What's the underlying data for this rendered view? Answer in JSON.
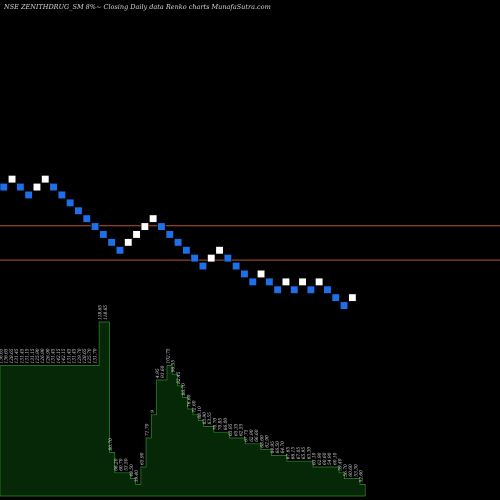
{
  "chart_data": {
    "type": "renko",
    "title": "NSE ZENITHDRUG_SM 8%~   Closing Daily data  Renko  charts MunafaSutra.com",
    "colors": {
      "background": "#000000",
      "up_brick": "#ffffff",
      "down_brick": "#1f6fe8",
      "reference_line": "#b5552f",
      "volume_fill": "#062806",
      "volume_stroke": "#2f8a2f",
      "volume_label": "#d8d8d8"
    },
    "bricks": [
      {
        "dir": "down",
        "level": 26
      },
      {
        "dir": "up",
        "level": 28
      },
      {
        "dir": "down",
        "level": 26
      },
      {
        "dir": "down",
        "level": 24
      },
      {
        "dir": "up",
        "level": 26
      },
      {
        "dir": "up",
        "level": 28
      },
      {
        "dir": "down",
        "level": 26
      },
      {
        "dir": "down",
        "level": 24
      },
      {
        "dir": "down",
        "level": 22
      },
      {
        "dir": "down",
        "level": 20
      },
      {
        "dir": "down",
        "level": 18
      },
      {
        "dir": "down",
        "level": 16
      },
      {
        "dir": "down",
        "level": 14
      },
      {
        "dir": "down",
        "level": 12
      },
      {
        "dir": "down",
        "level": 10
      },
      {
        "dir": "up",
        "level": 12
      },
      {
        "dir": "up",
        "level": 14
      },
      {
        "dir": "up",
        "level": 16
      },
      {
        "dir": "up",
        "level": 18
      },
      {
        "dir": "down",
        "level": 16
      },
      {
        "dir": "down",
        "level": 14
      },
      {
        "dir": "down",
        "level": 12
      },
      {
        "dir": "down",
        "level": 10
      },
      {
        "dir": "down",
        "level": 8
      },
      {
        "dir": "down",
        "level": 6
      },
      {
        "dir": "up",
        "level": 8
      },
      {
        "dir": "up",
        "level": 10
      },
      {
        "dir": "down",
        "level": 8
      },
      {
        "dir": "down",
        "level": 6
      },
      {
        "dir": "down",
        "level": 4
      },
      {
        "dir": "down",
        "level": 2
      },
      {
        "dir": "up",
        "level": 4
      },
      {
        "dir": "down",
        "level": 2
      },
      {
        "dir": "down",
        "level": 0
      },
      {
        "dir": "up",
        "level": 2
      },
      {
        "dir": "down",
        "level": 0
      },
      {
        "dir": "up",
        "level": 2
      },
      {
        "dir": "down",
        "level": 0
      },
      {
        "dir": "up",
        "level": 2
      },
      {
        "dir": "down",
        "level": 0
      },
      {
        "dir": "down",
        "level": -2
      },
      {
        "dir": "down",
        "level": -4
      },
      {
        "dir": "up",
        "level": -2
      }
    ],
    "reference_lines": [
      {
        "level": 16.2
      },
      {
        "level": 7.5
      }
    ],
    "volume": [
      {
        "height": 0.45,
        "label": "136.65"
      },
      {
        "height": 0.45,
        "label": "136.65"
      },
      {
        "height": 0.45,
        "label": "128.65"
      },
      {
        "height": 0.45,
        "label": "131.45"
      },
      {
        "height": 0.45,
        "label": "131.45"
      },
      {
        "height": 0.45,
        "label": "131.15"
      },
      {
        "height": 0.45,
        "label": "131.15"
      },
      {
        "height": 0.45,
        "label": "125.90"
      },
      {
        "height": 0.45,
        "label": "126.90"
      },
      {
        "height": 0.45,
        "label": "126.90"
      },
      {
        "height": 0.45,
        "label": "131.45"
      },
      {
        "height": 0.45,
        "label": "142.15"
      },
      {
        "height": 0.45,
        "label": "142.15"
      },
      {
        "height": 0.45,
        "label": "131.45"
      },
      {
        "height": 0.45,
        "label": "131.45"
      },
      {
        "height": 0.45,
        "label": "129.70"
      },
      {
        "height": 0.45,
        "label": "128.65"
      },
      {
        "height": 0.45,
        "label": "125.70"
      },
      {
        "height": 0.45,
        "label": "131.70"
      },
      {
        "height": 0.6,
        "label": "118.65"
      },
      {
        "height": 0.6,
        "label": "118.65"
      },
      {
        "height": 0.15,
        "label": "80.70"
      },
      {
        "height": 0.08,
        "label": "66.20"
      },
      {
        "height": 0.08,
        "label": "60.70"
      },
      {
        "height": 0.08,
        "label": "53.50"
      },
      {
        "height": 0.06,
        "label": "48.50"
      },
      {
        "height": 0.04,
        "label": "39.40"
      },
      {
        "height": 0.1,
        "label": "65.90"
      },
      {
        "height": 0.2,
        "label": "71.70"
      },
      {
        "height": 0.28,
        "label": "9"
      },
      {
        "height": 0.4,
        "label": "4.95"
      },
      {
        "height": 0.4,
        "label": "93.60"
      },
      {
        "height": 0.45,
        "label": "102.75"
      },
      {
        "height": 0.42,
        "label": "96.55"
      },
      {
        "height": 0.38,
        "label": "82.45"
      },
      {
        "height": 0.34,
        "label": "86.70"
      },
      {
        "height": 0.3,
        "label": "76.60"
      },
      {
        "height": 0.28,
        "label": "72.60"
      },
      {
        "height": 0.26,
        "label": "68.10"
      },
      {
        "height": 0.24,
        "label": "63.90"
      },
      {
        "height": 0.24,
        "label": "63.55"
      },
      {
        "height": 0.22,
        "label": "70.70"
      },
      {
        "height": 0.22,
        "label": "70.85"
      },
      {
        "height": 0.22,
        "label": "66.00"
      },
      {
        "height": 0.2,
        "label": "63.95"
      },
      {
        "height": 0.2,
        "label": "65.35"
      },
      {
        "height": 0.2,
        "label": "62.55"
      },
      {
        "height": 0.18,
        "label": "67.75"
      },
      {
        "height": 0.18,
        "label": "62.90"
      },
      {
        "height": 0.18,
        "label": "66.60"
      },
      {
        "height": 0.16,
        "label": "68.60"
      },
      {
        "height": 0.16,
        "label": "62.90"
      },
      {
        "height": 0.14,
        "label": "64.95"
      },
      {
        "height": 0.14,
        "label": "66.50"
      },
      {
        "height": 0.14,
        "label": "64.70"
      },
      {
        "height": 0.12,
        "label": "67.65"
      },
      {
        "height": 0.12,
        "label": "66.15"
      },
      {
        "height": 0.12,
        "label": "67.05"
      },
      {
        "height": 0.12,
        "label": "65.95"
      },
      {
        "height": 0.12,
        "label": "63.30"
      },
      {
        "height": 0.1,
        "label": "63.10"
      },
      {
        "height": 0.1,
        "label": "62.90"
      },
      {
        "height": 0.1,
        "label": "60.60"
      },
      {
        "height": 0.1,
        "label": "54.90"
      },
      {
        "height": 0.1,
        "label": "60.10"
      },
      {
        "height": 0.08,
        "label": "59.40"
      },
      {
        "height": 0.06,
        "label": "56.70"
      },
      {
        "height": 0.06,
        "label": "60.60"
      },
      {
        "height": 0.06,
        "label": "53.30"
      },
      {
        "height": 0.04,
        "label": "52.60"
      }
    ]
  }
}
